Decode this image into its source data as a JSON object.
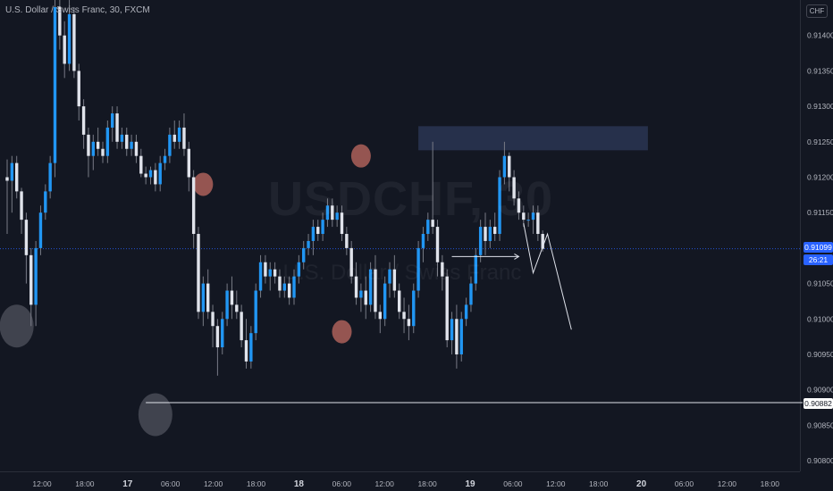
{
  "header": {
    "symbol_title": "U.S. Dollar / Swiss Franc, 30, FXCM",
    "currency_badge": "CHF",
    "watermark_symbol": "USDCHF, 30",
    "watermark_name": "U.S. Dollar / Swiss Franc"
  },
  "price_scale": {
    "current_price": "0.91099",
    "countdown": "26:21",
    "level_price": "0.90882"
  },
  "colors": {
    "background": "#131722",
    "bull_candle": "#2196f3",
    "bear_candle": "#e0e3eb",
    "wick": "#787b86",
    "zone": "#2a3552",
    "current_price_line": "#2962ff",
    "drawing": "#e0e3eb",
    "marker_red": "#c26b62",
    "marker_grey": "#787b86"
  },
  "chart_data": {
    "type": "candlestick",
    "timeframe": "30",
    "y_axis_ticks": [
      "0.91400",
      "0.91350",
      "0.91300",
      "0.91250",
      "0.91200",
      "0.91150",
      "0.91100",
      "0.91050",
      "0.91000",
      "0.90950",
      "0.90900",
      "0.90850",
      "0.90800"
    ],
    "ylim": [
      0.9079,
      0.91445
    ],
    "x_axis_labels": [
      "12:00",
      "18:00",
      "17",
      "06:00",
      "12:00",
      "18:00",
      "18",
      "06:00",
      "12:00",
      "18:00",
      "19",
      "06:00",
      "12:00",
      "18:00",
      "20",
      "06:00",
      "12:00",
      "18:00"
    ],
    "x_axis_bold": [
      "17",
      "18",
      "19",
      "20"
    ],
    "ohlc": [
      [
        0.912,
        0.91225,
        0.9112,
        0.91195
      ],
      [
        0.91195,
        0.9123,
        0.9115,
        0.9122
      ],
      [
        0.9122,
        0.9123,
        0.9117,
        0.9118
      ],
      [
        0.9118,
        0.91185,
        0.9112,
        0.9114
      ],
      [
        0.9114,
        0.9115,
        0.9105,
        0.9109
      ],
      [
        0.9109,
        0.911,
        0.9099,
        0.9102
      ],
      [
        0.9102,
        0.9111,
        0.9099,
        0.911
      ],
      [
        0.911,
        0.9116,
        0.9109,
        0.9115
      ],
      [
        0.9115,
        0.9119,
        0.9114,
        0.9118
      ],
      [
        0.9118,
        0.9123,
        0.9117,
        0.9122
      ],
      [
        0.9122,
        0.9145,
        0.912,
        0.9144
      ],
      [
        0.9144,
        0.9146,
        0.9138,
        0.914
      ],
      [
        0.914,
        0.9142,
        0.9134,
        0.9136
      ],
      [
        0.9136,
        0.9145,
        0.9135,
        0.9143
      ],
      [
        0.9143,
        0.9144,
        0.9134,
        0.9135
      ],
      [
        0.9135,
        0.9136,
        0.9128,
        0.913
      ],
      [
        0.913,
        0.9131,
        0.9124,
        0.9126
      ],
      [
        0.9126,
        0.9127,
        0.912,
        0.9123
      ],
      [
        0.9123,
        0.9126,
        0.9121,
        0.9125
      ],
      [
        0.9125,
        0.9127,
        0.9123,
        0.9124
      ],
      [
        0.9124,
        0.9125,
        0.9122,
        0.9123
      ],
      [
        0.9123,
        0.9128,
        0.9122,
        0.9127
      ],
      [
        0.9127,
        0.913,
        0.9125,
        0.9129
      ],
      [
        0.9129,
        0.913,
        0.9124,
        0.9125
      ],
      [
        0.9125,
        0.9127,
        0.9124,
        0.9126
      ],
      [
        0.9126,
        0.9127,
        0.9123,
        0.9124
      ],
      [
        0.9124,
        0.9126,
        0.9123,
        0.9125
      ],
      [
        0.9125,
        0.9126,
        0.9122,
        0.9123
      ],
      [
        0.9123,
        0.9124,
        0.912,
        0.91205
      ],
      [
        0.91205,
        0.91215,
        0.9119,
        0.912
      ],
      [
        0.912,
        0.91215,
        0.9119,
        0.9121
      ],
      [
        0.9121,
        0.9122,
        0.9118,
        0.9119
      ],
      [
        0.9119,
        0.9123,
        0.9118,
        0.9122
      ],
      [
        0.9122,
        0.9124,
        0.9121,
        0.9123
      ],
      [
        0.9123,
        0.9127,
        0.9122,
        0.9126
      ],
      [
        0.9126,
        0.9128,
        0.9124,
        0.9125
      ],
      [
        0.9125,
        0.9128,
        0.9124,
        0.9127
      ],
      [
        0.9127,
        0.9129,
        0.9123,
        0.9124
      ],
      [
        0.9124,
        0.9125,
        0.9118,
        0.912
      ],
      [
        0.912,
        0.9121,
        0.911,
        0.9112
      ],
      [
        0.9112,
        0.9113,
        0.91,
        0.9101
      ],
      [
        0.9101,
        0.9106,
        0.9099,
        0.9105
      ],
      [
        0.9105,
        0.9107,
        0.91,
        0.9101
      ],
      [
        0.9101,
        0.9102,
        0.9096,
        0.9099
      ],
      [
        0.9099,
        0.91,
        0.9092,
        0.9096
      ],
      [
        0.9096,
        0.9101,
        0.9095,
        0.91
      ],
      [
        0.91,
        0.9105,
        0.9099,
        0.9104
      ],
      [
        0.9104,
        0.9106,
        0.91,
        0.9102
      ],
      [
        0.9102,
        0.9104,
        0.91,
        0.9101
      ],
      [
        0.9101,
        0.9102,
        0.9096,
        0.9097
      ],
      [
        0.9097,
        0.91,
        0.9093,
        0.9094
      ],
      [
        0.9094,
        0.9099,
        0.9093,
        0.9098
      ],
      [
        0.9098,
        0.9105,
        0.9097,
        0.9104
      ],
      [
        0.9104,
        0.9109,
        0.9103,
        0.9108
      ],
      [
        0.9108,
        0.9109,
        0.9105,
        0.9106
      ],
      [
        0.9106,
        0.9108,
        0.9104,
        0.9107
      ],
      [
        0.9107,
        0.9108,
        0.9105,
        0.9106
      ],
      [
        0.9106,
        0.9107,
        0.9103,
        0.9104
      ],
      [
        0.9104,
        0.9106,
        0.9103,
        0.9105
      ],
      [
        0.9105,
        0.9106,
        0.9102,
        0.9103
      ],
      [
        0.9103,
        0.9107,
        0.9102,
        0.9106
      ],
      [
        0.9106,
        0.9109,
        0.9105,
        0.9108
      ],
      [
        0.9108,
        0.9111,
        0.9107,
        0.911
      ],
      [
        0.911,
        0.9112,
        0.9109,
        0.9111
      ],
      [
        0.9111,
        0.9114,
        0.9109,
        0.9113
      ],
      [
        0.9113,
        0.9114,
        0.9111,
        0.9112
      ],
      [
        0.9112,
        0.9115,
        0.9111,
        0.9114
      ],
      [
        0.9114,
        0.9117,
        0.9113,
        0.9116
      ],
      [
        0.9116,
        0.9117,
        0.9113,
        0.9114
      ],
      [
        0.9114,
        0.9116,
        0.9113,
        0.9115
      ],
      [
        0.9115,
        0.9116,
        0.9111,
        0.9112
      ],
      [
        0.9112,
        0.9113,
        0.9109,
        0.911
      ],
      [
        0.911,
        0.9111,
        0.9105,
        0.9106
      ],
      [
        0.9106,
        0.9108,
        0.9102,
        0.9103
      ],
      [
        0.9103,
        0.9105,
        0.9101,
        0.9104
      ],
      [
        0.9104,
        0.9106,
        0.91,
        0.9102
      ],
      [
        0.9102,
        0.9108,
        0.9101,
        0.9107
      ],
      [
        0.9107,
        0.9109,
        0.91,
        0.9101
      ],
      [
        0.9101,
        0.9102,
        0.9098,
        0.91
      ],
      [
        0.91,
        0.9106,
        0.9099,
        0.9105
      ],
      [
        0.9105,
        0.9108,
        0.9103,
        0.9107
      ],
      [
        0.9107,
        0.9109,
        0.9103,
        0.9104
      ],
      [
        0.9104,
        0.9105,
        0.91,
        0.9101
      ],
      [
        0.9101,
        0.9103,
        0.9098,
        0.91
      ],
      [
        0.91,
        0.9102,
        0.9097,
        0.9099
      ],
      [
        0.9099,
        0.9105,
        0.9098,
        0.9104
      ],
      [
        0.9104,
        0.9111,
        0.9103,
        0.911
      ],
      [
        0.911,
        0.9113,
        0.9108,
        0.9112
      ],
      [
        0.9112,
        0.9115,
        0.9111,
        0.9114
      ],
      [
        0.9114,
        0.9125,
        0.9112,
        0.9113
      ],
      [
        0.9113,
        0.9114,
        0.9106,
        0.9108
      ],
      [
        0.9108,
        0.9109,
        0.9104,
        0.9106
      ],
      [
        0.9106,
        0.9107,
        0.9096,
        0.9097
      ],
      [
        0.9097,
        0.9101,
        0.9095,
        0.91
      ],
      [
        0.91,
        0.9102,
        0.9093,
        0.9095
      ],
      [
        0.9095,
        0.9101,
        0.9094,
        0.91
      ],
      [
        0.91,
        0.9103,
        0.9099,
        0.9102
      ],
      [
        0.9102,
        0.9106,
        0.9101,
        0.9105
      ],
      [
        0.9105,
        0.911,
        0.9104,
        0.9109
      ],
      [
        0.9109,
        0.9114,
        0.9108,
        0.9113
      ],
      [
        0.9113,
        0.9115,
        0.9109,
        0.9111
      ],
      [
        0.9111,
        0.9114,
        0.911,
        0.9113
      ],
      [
        0.9113,
        0.9115,
        0.9111,
        0.9112
      ],
      [
        0.9112,
        0.9121,
        0.9111,
        0.912
      ],
      [
        0.912,
        0.9125,
        0.9119,
        0.9123
      ],
      [
        0.9123,
        0.91235,
        0.9118,
        0.912
      ],
      [
        0.912,
        0.9121,
        0.9116,
        0.9117
      ],
      [
        0.9117,
        0.9118,
        0.9114,
        0.9115
      ],
      [
        0.9115,
        0.9116,
        0.9113,
        0.9114
      ],
      [
        0.9114,
        0.9115,
        0.9113,
        0.9114
      ],
      [
        0.9114,
        0.9116,
        0.9112,
        0.9115
      ],
      [
        0.9115,
        0.9116,
        0.9111,
        0.9112
      ],
      [
        0.9112,
        0.91125,
        0.91095,
        0.91099
      ]
    ],
    "annotations": {
      "resistance_zone": {
        "from_index": 86,
        "to_index": 134,
        "y_low": 0.91238,
        "y_high": 0.91272
      },
      "support_line": {
        "from_index": 29,
        "to_index": 150,
        "y": 0.90882
      },
      "projection_arrow": {
        "from_index": 93,
        "to_index": 107,
        "y": 0.91088
      },
      "projection_path": [
        [
          108,
          0.91135
        ],
        [
          110,
          0.91065
        ],
        [
          113,
          0.9112
        ],
        [
          118,
          0.90985
        ]
      ],
      "circles": [
        {
          "index": 2,
          "y": 0.9099,
          "color": "grey"
        },
        {
          "index": 31,
          "y": 0.90865,
          "color": "grey"
        },
        {
          "index": 41,
          "y": 0.9119,
          "color": "red"
        },
        {
          "index": 70,
          "y": 0.90982,
          "color": "red"
        },
        {
          "index": 74,
          "y": 0.9123,
          "color": "red"
        }
      ]
    }
  }
}
